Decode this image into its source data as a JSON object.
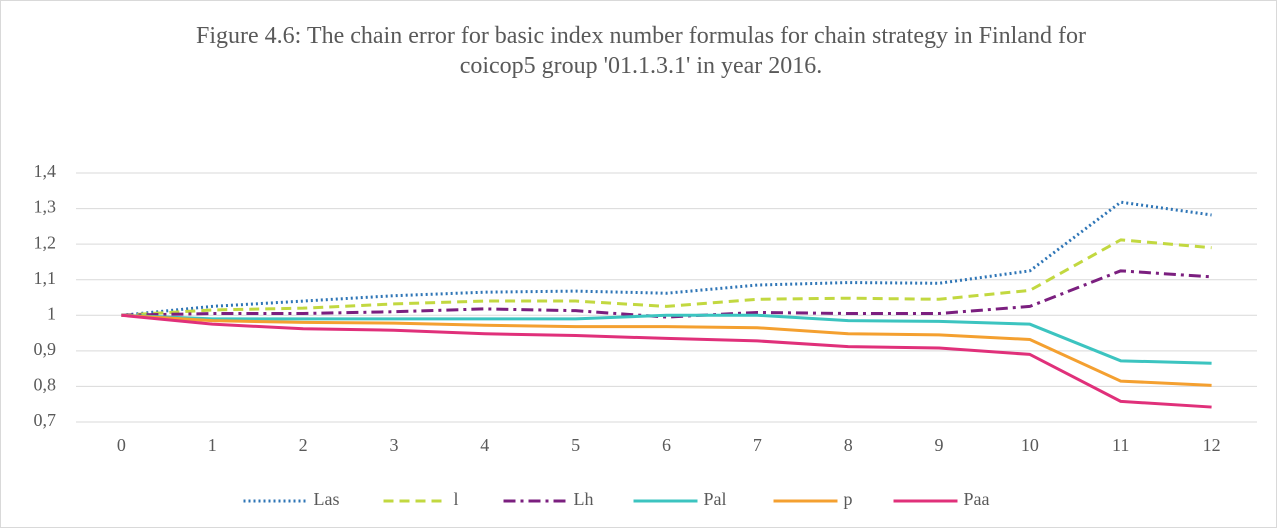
{
  "chart_data": {
    "type": "line",
    "title": "Figure 4.6: The chain error for basic index number formulas for chain strategy in Finland for coicop5 group '01.1.3.1' in year 2016.",
    "categories": [
      "0",
      "1",
      "2",
      "3",
      "4",
      "5",
      "6",
      "7",
      "8",
      "9",
      "10",
      "11",
      "12"
    ],
    "series": [
      {
        "name": "Las",
        "color": "#2e75b6",
        "dash": "dotted",
        "values": [
          1,
          1.025,
          1.04,
          1.055,
          1.065,
          1.068,
          1.062,
          1.085,
          1.092,
          1.09,
          1.125,
          1.318,
          1.282
        ]
      },
      {
        "name": "l",
        "color": "#c2d840",
        "dash": "dashed",
        "values": [
          1,
          1.015,
          1.02,
          1.032,
          1.04,
          1.04,
          1.025,
          1.045,
          1.048,
          1.045,
          1.07,
          1.212,
          1.19
        ]
      },
      {
        "name": "Lh",
        "color": "#7b1f7f",
        "dash": "dash-dot",
        "values": [
          1,
          1.005,
          1.005,
          1.01,
          1.018,
          1.013,
          0.995,
          1.008,
          1.005,
          1.005,
          1.025,
          1.125,
          1.108
        ]
      },
      {
        "name": "Pal",
        "color": "#3cc4c0",
        "dash": "solid",
        "values": [
          1,
          0.99,
          0.99,
          0.99,
          0.99,
          0.99,
          1.0,
          1.0,
          0.985,
          0.983,
          0.975,
          0.872,
          0.865
        ]
      },
      {
        "name": "p",
        "color": "#f4a030",
        "dash": "solid",
        "values": [
          1,
          0.985,
          0.98,
          0.978,
          0.972,
          0.968,
          0.968,
          0.965,
          0.948,
          0.945,
          0.932,
          0.815,
          0.803
        ]
      },
      {
        "name": "Paa",
        "color": "#e0307a",
        "dash": "solid",
        "values": [
          1,
          0.975,
          0.962,
          0.958,
          0.948,
          0.943,
          0.935,
          0.928,
          0.912,
          0.908,
          0.89,
          0.758,
          0.742
        ]
      }
    ],
    "ylim": [
      0.7,
      1.4
    ],
    "yticks": [
      {
        "value": 0.7,
        "label": "0,7"
      },
      {
        "value": 0.8,
        "label": "0,8"
      },
      {
        "value": 0.9,
        "label": "0,9"
      },
      1,
      {
        "value": 1.1,
        "label": "1,1"
      },
      {
        "value": 1.2,
        "label": "1,2"
      },
      {
        "value": 1.3,
        "label": "1,3"
      },
      {
        "value": 1.4,
        "label": "1,4"
      }
    ],
    "grid": true,
    "legend": "bottom"
  }
}
